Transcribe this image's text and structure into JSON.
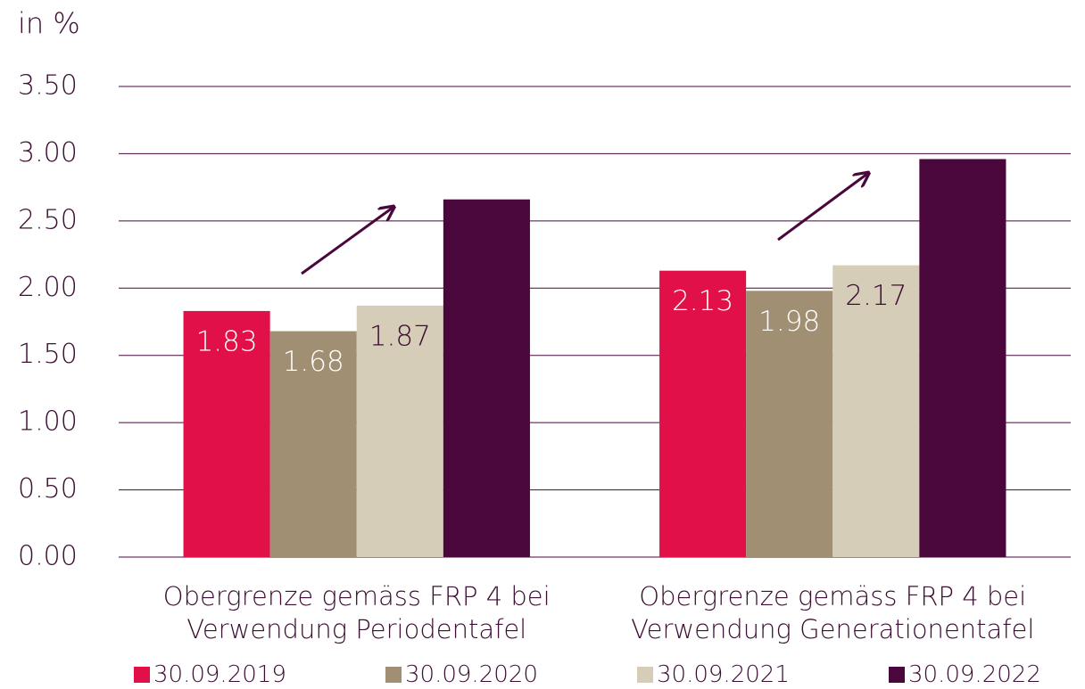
{
  "chart_data": {
    "type": "bar",
    "ylabel": "in %",
    "categories": [
      "Obergrenze gemäss FRP 4 bei Verwendung Periodentafel",
      "Obergrenze gemäss FRP 4 bei Verwendung Generationentafel"
    ],
    "series": [
      {
        "name": "30.09.2019",
        "color": "#e11048",
        "values": [
          1.83,
          2.13
        ]
      },
      {
        "name": "30.09.2020",
        "color": "#a08f72",
        "values": [
          1.68,
          1.98
        ]
      },
      {
        "name": "30.09.2021",
        "color": "#d6cdb9",
        "values": [
          1.87,
          2.17
        ]
      },
      {
        "name": "30.09.2022",
        "color": "#4a073c",
        "values": [
          2.66,
          2.96
        ],
        "show_labels": false
      }
    ],
    "ylim": [
      0,
      3.5
    ],
    "yticks": [
      {
        "value": 0,
        "label": "0.00"
      },
      {
        "value": 0.5,
        "label": "0.50"
      },
      {
        "value": 1,
        "label": "1.00"
      },
      {
        "value": 1.5,
        "label": "1.50"
      },
      {
        "value": 2,
        "label": "2.00"
      },
      {
        "value": 2.5,
        "label": "2.50"
      },
      {
        "value": 3,
        "label": "3.00"
      },
      {
        "value": 3.5,
        "label": "3.50"
      }
    ],
    "grid": true
  }
}
